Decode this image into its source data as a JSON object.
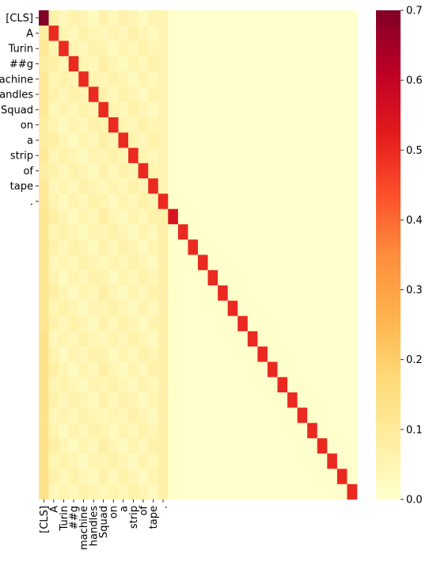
{
  "chart_data": {
    "type": "heatmap",
    "title": "",
    "xlabel": "",
    "ylabel": "",
    "row_labels": [
      "[CLS]",
      "A",
      "Turin",
      "##g",
      "machine",
      "handles",
      "Squad",
      "on",
      "a",
      "strip",
      "of",
      "tape",
      "."
    ],
    "col_labels": [
      "[CLS]",
      "A",
      "Turin",
      "##g",
      "machine",
      "handles",
      "Squad",
      "on",
      "a",
      "strip",
      "of",
      "tape",
      "."
    ],
    "n_rows": 32,
    "n_cols": 32,
    "diagonal_values": [
      0.7,
      0.5,
      0.5,
      0.5,
      0.5,
      0.5,
      0.5,
      0.5,
      0.5,
      0.5,
      0.5,
      0.5,
      0.5,
      0.55,
      0.5,
      0.5,
      0.5,
      0.5,
      0.5,
      0.5,
      0.5,
      0.5,
      0.5,
      0.5,
      0.5,
      0.5,
      0.5,
      0.5,
      0.5,
      0.5,
      0.5,
      0.5
    ],
    "first_column_values": [
      0.7,
      0.08,
      0.1,
      0.08,
      0.1,
      0.1,
      0.1,
      0.08,
      0.08,
      0.1,
      0.08,
      0.1,
      0.1,
      0.12,
      0.12,
      0.12,
      0.12,
      0.12,
      0.12,
      0.12,
      0.12,
      0.13,
      0.13,
      0.13,
      0.13,
      0.13,
      0.13,
      0.13,
      0.13,
      0.13,
      0.13,
      0.13
    ],
    "colorbar": {
      "min": 0.0,
      "max": 0.7,
      "ticks": [
        "0.0",
        "0.1",
        "0.2",
        "0.3",
        "0.4",
        "0.5",
        "0.6",
        "0.7"
      ],
      "colormap": "YlOrRd"
    }
  }
}
